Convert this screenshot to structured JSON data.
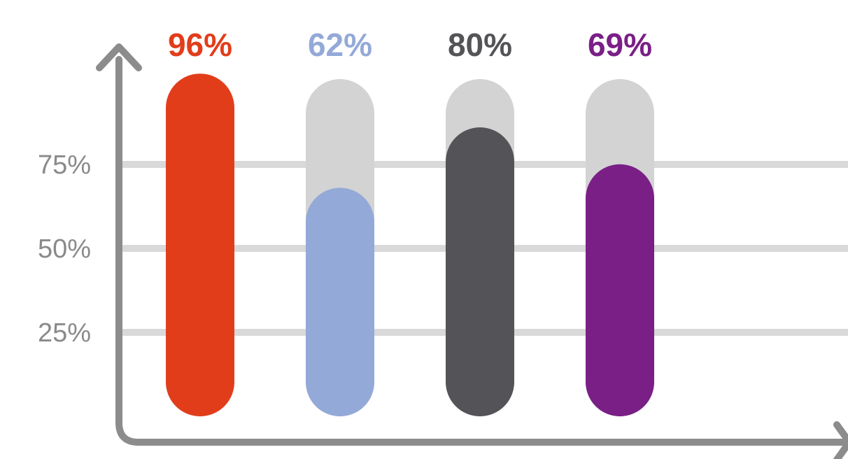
{
  "chart_data": {
    "type": "bar",
    "categories": [
      "",
      "",
      "",
      ""
    ],
    "values": [
      96,
      62,
      80,
      69
    ],
    "value_labels": [
      "96%",
      "62%",
      "80%",
      "69%"
    ],
    "colors": [
      "#e23d1b",
      "#93a9d8",
      "#545458",
      "#7a1f86"
    ],
    "track_color": "#d3d3d3",
    "axis_color": "#8c8c8c",
    "gridline_color": "#d9d9d9",
    "y_ticks": [
      {
        "value": 25,
        "label": "25%"
      },
      {
        "value": 50,
        "label": "50%"
      },
      {
        "value": 75,
        "label": "75%"
      }
    ],
    "ylim": [
      0,
      100
    ],
    "grid": true,
    "title": "",
    "xlabel": "",
    "ylabel": ""
  }
}
